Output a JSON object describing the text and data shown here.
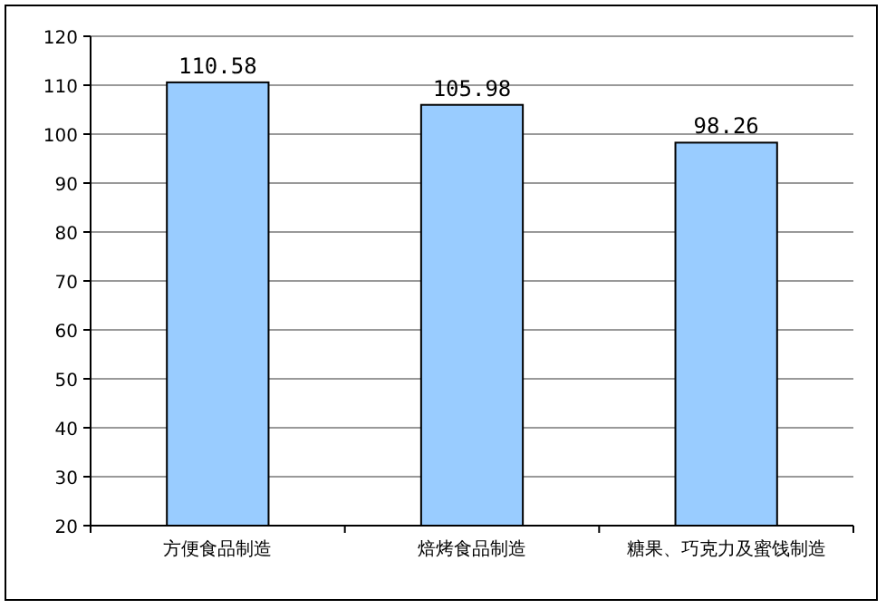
{
  "chart_data": {
    "type": "bar",
    "categories": [
      "方便食品制造",
      "焙烤食品制造",
      "糖果、巧克力及蜜饯制造"
    ],
    "values": [
      110.58,
      105.98,
      98.26
    ],
    "color": "#99ccff",
    "value_labels": [
      "110.58",
      "105.98",
      "98.26"
    ],
    "ylim": [
      20,
      120
    ],
    "yticks": [
      20,
      30,
      40,
      50,
      60,
      70,
      80,
      90,
      100,
      110,
      120
    ],
    "grid": "y"
  }
}
